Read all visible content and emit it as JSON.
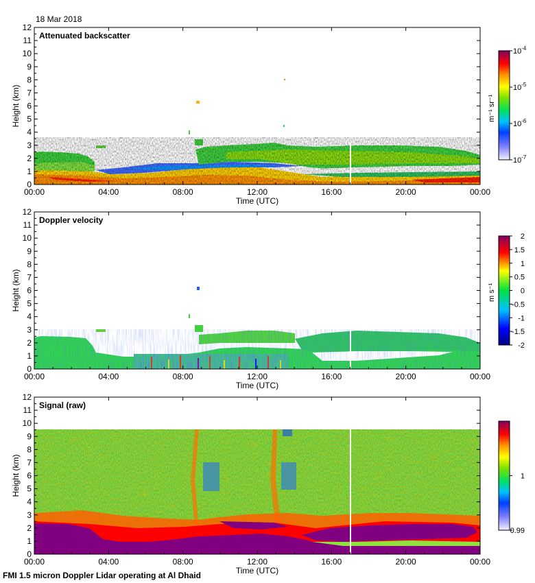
{
  "date": "18 Mar 2018",
  "footer": "FMI 1.5 micron Doppler Lidar operating at Al Dhaid",
  "chart_data": [
    {
      "type": "heatmap",
      "title": "Attenuated backscatter",
      "xlabel": "Time (UTC)",
      "ylabel": "Height (km)",
      "xticks": [
        "00:00",
        "04:00",
        "08:00",
        "12:00",
        "16:00",
        "20:00",
        "00:00"
      ],
      "xlim": [
        0,
        24
      ],
      "yticks": [
        0,
        1,
        2,
        3,
        4,
        5,
        6,
        7,
        8,
        9,
        10,
        11,
        12
      ],
      "ylim": [
        0,
        12
      ],
      "colorbar": {
        "label": "m⁻¹ sr⁻¹",
        "scale": "log",
        "range": [
          1e-07,
          0.0001
        ],
        "ticks": [
          {
            "base": "10",
            "exp": "-7",
            "value": 1e-07
          },
          {
            "base": "10",
            "exp": "-6",
            "value": 1e-06
          },
          {
            "base": "10",
            "exp": "-5",
            "value": 1e-05
          },
          {
            "base": "10",
            "exp": "-4",
            "value": 0.0001
          }
        ]
      }
    },
    {
      "type": "heatmap",
      "title": "Doppler velocity",
      "xlabel": "Time (UTC)",
      "ylabel": "Height (km)",
      "xticks": [
        "00:00",
        "04:00",
        "08:00",
        "12:00",
        "16:00",
        "20:00",
        "00:00"
      ],
      "xlim": [
        0,
        24
      ],
      "yticks": [
        0,
        1,
        2,
        3,
        4,
        5,
        6,
        7,
        8,
        9,
        10,
        11,
        12
      ],
      "ylim": [
        0,
        12
      ],
      "colorbar": {
        "label": "m s⁻¹",
        "scale": "linear",
        "range": [
          -2,
          2
        ],
        "ticks": [
          "2",
          "1.5",
          "1",
          "0.5",
          "0",
          "-0.5",
          "-1",
          "-1.5",
          "-2"
        ]
      }
    },
    {
      "type": "heatmap",
      "title": "Signal (raw)",
      "xlabel": "Time (UTC)",
      "ylabel": "Height (km)",
      "xticks": [
        "00:00",
        "04:00",
        "08:00",
        "12:00",
        "16:00",
        "20:00",
        "00:00"
      ],
      "xlim": [
        0,
        24
      ],
      "yticks": [
        0,
        1,
        2,
        3,
        4,
        5,
        6,
        7,
        8,
        9,
        10,
        11,
        12
      ],
      "ylim": [
        0,
        12
      ],
      "colorbar": {
        "label": "",
        "scale": "linear",
        "range": [
          0.99,
          1.01
        ],
        "ticks": [
          "1",
          "0.99"
        ]
      }
    }
  ]
}
